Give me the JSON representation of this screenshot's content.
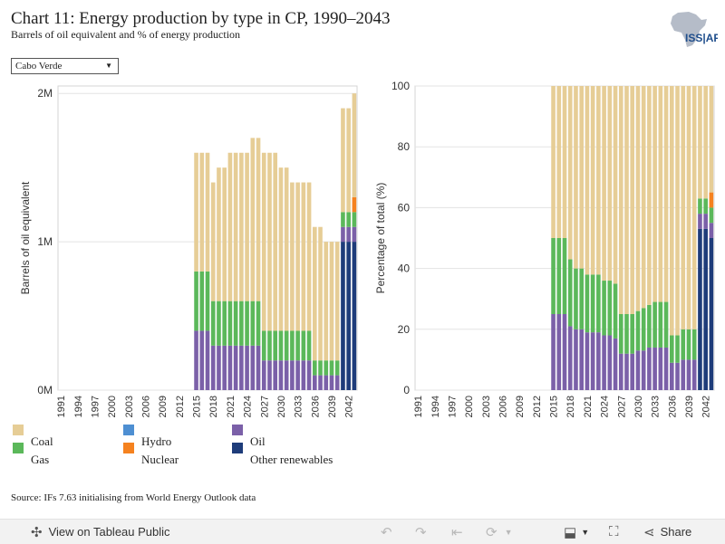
{
  "header": {
    "title": "Chart 11: Energy production by type in CP, 1990–2043",
    "subtitle": "Barrels of oil equivalent and % of energy production",
    "logo_text": "ISS|AFI"
  },
  "filter": {
    "selected": "Cabo Verde"
  },
  "legend": [
    {
      "name": "Coal",
      "color": "#e6cd96"
    },
    {
      "name": "Hydro",
      "color": "#4e8fd2"
    },
    {
      "name": "Oil",
      "color": "#7b60a8"
    },
    {
      "name": "Gas",
      "color": "#5bb85a"
    },
    {
      "name": "Nuclear",
      "color": "#f5821f"
    },
    {
      "name": "Other renewables",
      "color": "#1e3c7a"
    }
  ],
  "source": "Source: IFs 7.63 initialising from World Energy Outlook data",
  "toolbar": {
    "view_label": "View on Tableau Public",
    "share_label": "Share"
  },
  "chart_data": [
    {
      "type": "bar",
      "stacked": true,
      "ylabel": "Barrels of oil equivalent",
      "ylim": [
        0,
        2050000
      ],
      "yticks": [
        {
          "v": 0,
          "label": "0M"
        },
        {
          "v": 1000000,
          "label": "1M"
        },
        {
          "v": 2000000,
          "label": "2M"
        }
      ],
      "years": [
        1991,
        1992,
        1993,
        1994,
        1995,
        1996,
        1997,
        1998,
        1999,
        2000,
        2001,
        2002,
        2003,
        2004,
        2005,
        2006,
        2007,
        2008,
        2009,
        2010,
        2011,
        2012,
        2013,
        2014,
        2015,
        2016,
        2017,
        2018,
        2019,
        2020,
        2021,
        2022,
        2023,
        2024,
        2025,
        2026,
        2027,
        2028,
        2029,
        2030,
        2031,
        2032,
        2033,
        2034,
        2035,
        2036,
        2037,
        2038,
        2039,
        2040,
        2041,
        2042,
        2043
      ],
      "x_tick_labels": [
        "1991",
        "1994",
        "1997",
        "2000",
        "2003",
        "2006",
        "2009",
        "2012",
        "2015",
        "2018",
        "2021",
        "2024",
        "2027",
        "2030",
        "2033",
        "2036",
        "2039",
        "2042"
      ],
      "series": [
        {
          "name": "Other renewables",
          "color": "#1e3c7a",
          "values": [
            0,
            0,
            0,
            0,
            0,
            0,
            0,
            0,
            0,
            0,
            0,
            0,
            0,
            0,
            0,
            0,
            0,
            0,
            0,
            0,
            0,
            0,
            0,
            0,
            0,
            0,
            0,
            0,
            0,
            0,
            0,
            0,
            0,
            0,
            0,
            0,
            0,
            0,
            0,
            0,
            0,
            0,
            0,
            0,
            0,
            0,
            0,
            0,
            0,
            0,
            1000000,
            1000000,
            1000000
          ]
        },
        {
          "name": "Oil",
          "color": "#7b60a8",
          "values": [
            0,
            0,
            0,
            0,
            0,
            0,
            0,
            0,
            0,
            0,
            0,
            0,
            0,
            0,
            0,
            0,
            0,
            0,
            0,
            0,
            0,
            0,
            0,
            0,
            400000,
            400000,
            400000,
            300000,
            300000,
            300000,
            300000,
            300000,
            300000,
            300000,
            300000,
            300000,
            200000,
            200000,
            200000,
            200000,
            200000,
            200000,
            200000,
            200000,
            200000,
            100000,
            100000,
            100000,
            100000,
            100000,
            100000,
            100000,
            100000
          ]
        },
        {
          "name": "Gas",
          "color": "#5bb85a",
          "values": [
            0,
            0,
            0,
            0,
            0,
            0,
            0,
            0,
            0,
            0,
            0,
            0,
            0,
            0,
            0,
            0,
            0,
            0,
            0,
            0,
            0,
            0,
            0,
            0,
            400000,
            400000,
            400000,
            300000,
            300000,
            300000,
            300000,
            300000,
            300000,
            300000,
            300000,
            300000,
            200000,
            200000,
            200000,
            200000,
            200000,
            200000,
            200000,
            200000,
            200000,
            100000,
            100000,
            100000,
            100000,
            100000,
            100000,
            100000,
            100000
          ]
        },
        {
          "name": "Nuclear",
          "color": "#f5821f",
          "values": [
            0,
            0,
            0,
            0,
            0,
            0,
            0,
            0,
            0,
            0,
            0,
            0,
            0,
            0,
            0,
            0,
            0,
            0,
            0,
            0,
            0,
            0,
            0,
            0,
            0,
            0,
            0,
            0,
            0,
            0,
            0,
            0,
            0,
            0,
            0,
            0,
            0,
            0,
            0,
            0,
            0,
            0,
            0,
            0,
            0,
            0,
            0,
            0,
            0,
            0,
            0,
            0,
            100000
          ]
        },
        {
          "name": "Hydro",
          "color": "#4e8fd2",
          "values": [
            0,
            0,
            0,
            0,
            0,
            0,
            0,
            0,
            0,
            0,
            0,
            0,
            0,
            0,
            0,
            0,
            0,
            0,
            0,
            0,
            0,
            0,
            0,
            0,
            0,
            0,
            0,
            0,
            0,
            0,
            0,
            0,
            0,
            0,
            0,
            0,
            0,
            0,
            0,
            0,
            0,
            0,
            0,
            0,
            0,
            0,
            0,
            0,
            0,
            0,
            0,
            0,
            0
          ]
        },
        {
          "name": "Coal",
          "color": "#e6cd96",
          "values": [
            0,
            0,
            0,
            0,
            0,
            0,
            0,
            0,
            0,
            0,
            0,
            0,
            0,
            0,
            0,
            0,
            0,
            0,
            0,
            0,
            0,
            0,
            0,
            0,
            800000,
            800000,
            800000,
            800000,
            900000,
            900000,
            1000000,
            1000000,
            1000000,
            1000000,
            1100000,
            1100000,
            1200000,
            1200000,
            1200000,
            1100000,
            1100000,
            1000000,
            1000000,
            1000000,
            1000000,
            900000,
            900000,
            800000,
            800000,
            800000,
            700000,
            700000,
            700000
          ]
        }
      ]
    },
    {
      "type": "bar",
      "stacked": true,
      "ylabel": "Percentage of total (%)",
      "ylim": [
        0,
        100
      ],
      "yticks": [
        {
          "v": 0,
          "label": "0"
        },
        {
          "v": 20,
          "label": "20"
        },
        {
          "v": 40,
          "label": "40"
        },
        {
          "v": 60,
          "label": "60"
        },
        {
          "v": 80,
          "label": "80"
        },
        {
          "v": 100,
          "label": "100"
        }
      ],
      "years": [
        1991,
        1992,
        1993,
        1994,
        1995,
        1996,
        1997,
        1998,
        1999,
        2000,
        2001,
        2002,
        2003,
        2004,
        2005,
        2006,
        2007,
        2008,
        2009,
        2010,
        2011,
        2012,
        2013,
        2014,
        2015,
        2016,
        2017,
        2018,
        2019,
        2020,
        2021,
        2022,
        2023,
        2024,
        2025,
        2026,
        2027,
        2028,
        2029,
        2030,
        2031,
        2032,
        2033,
        2034,
        2035,
        2036,
        2037,
        2038,
        2039,
        2040,
        2041,
        2042,
        2043
      ],
      "x_tick_labels": [
        "1991",
        "1994",
        "1997",
        "2000",
        "2003",
        "2006",
        "2009",
        "2012",
        "2015",
        "2018",
        "2021",
        "2024",
        "2027",
        "2030",
        "2033",
        "2036",
        "2039",
        "2042"
      ],
      "series": [
        {
          "name": "Other renewables",
          "color": "#1e3c7a",
          "values": [
            0,
            0,
            0,
            0,
            0,
            0,
            0,
            0,
            0,
            0,
            0,
            0,
            0,
            0,
            0,
            0,
            0,
            0,
            0,
            0,
            0,
            0,
            0,
            0,
            0,
            0,
            0,
            0,
            0,
            0,
            0,
            0,
            0,
            0,
            0,
            0,
            0,
            0,
            0,
            0,
            0,
            0,
            0,
            0,
            0,
            0,
            0,
            0,
            0,
            0,
            53,
            53,
            50
          ]
        },
        {
          "name": "Oil",
          "color": "#7b60a8",
          "values": [
            0,
            0,
            0,
            0,
            0,
            0,
            0,
            0,
            0,
            0,
            0,
            0,
            0,
            0,
            0,
            0,
            0,
            0,
            0,
            0,
            0,
            0,
            0,
            0,
            25,
            25,
            25,
            21,
            20,
            20,
            19,
            19,
            19,
            18,
            18,
            17,
            12,
            12,
            12,
            13,
            13,
            14,
            14,
            14,
            14,
            9,
            9,
            10,
            10,
            10,
            5,
            5,
            5
          ]
        },
        {
          "name": "Gas",
          "color": "#5bb85a",
          "values": [
            0,
            0,
            0,
            0,
            0,
            0,
            0,
            0,
            0,
            0,
            0,
            0,
            0,
            0,
            0,
            0,
            0,
            0,
            0,
            0,
            0,
            0,
            0,
            0,
            25,
            25,
            25,
            22,
            20,
            20,
            19,
            19,
            19,
            18,
            18,
            18,
            13,
            13,
            13,
            13,
            14,
            14,
            15,
            15,
            15,
            9,
            9,
            10,
            10,
            10,
            5,
            5,
            5
          ]
        },
        {
          "name": "Nuclear",
          "color": "#f5821f",
          "values": [
            0,
            0,
            0,
            0,
            0,
            0,
            0,
            0,
            0,
            0,
            0,
            0,
            0,
            0,
            0,
            0,
            0,
            0,
            0,
            0,
            0,
            0,
            0,
            0,
            0,
            0,
            0,
            0,
            0,
            0,
            0,
            0,
            0,
            0,
            0,
            0,
            0,
            0,
            0,
            0,
            0,
            0,
            0,
            0,
            0,
            0,
            0,
            0,
            0,
            0,
            0,
            0,
            5
          ]
        },
        {
          "name": "Hydro",
          "color": "#4e8fd2",
          "values": [
            0,
            0,
            0,
            0,
            0,
            0,
            0,
            0,
            0,
            0,
            0,
            0,
            0,
            0,
            0,
            0,
            0,
            0,
            0,
            0,
            0,
            0,
            0,
            0,
            0,
            0,
            0,
            0,
            0,
            0,
            0,
            0,
            0,
            0,
            0,
            0,
            0,
            0,
            0,
            0,
            0,
            0,
            0,
            0,
            0,
            0,
            0,
            0,
            0,
            0,
            0,
            0,
            0
          ]
        },
        {
          "name": "Coal",
          "color": "#e6cd96",
          "values": [
            0,
            0,
            0,
            0,
            0,
            0,
            0,
            0,
            0,
            0,
            0,
            0,
            0,
            0,
            0,
            0,
            0,
            0,
            0,
            0,
            0,
            0,
            0,
            0,
            50,
            50,
            50,
            57,
            60,
            60,
            62,
            62,
            62,
            64,
            64,
            65,
            75,
            75,
            75,
            74,
            73,
            72,
            71,
            71,
            71,
            82,
            82,
            80,
            80,
            80,
            37,
            37,
            35
          ]
        }
      ]
    }
  ]
}
